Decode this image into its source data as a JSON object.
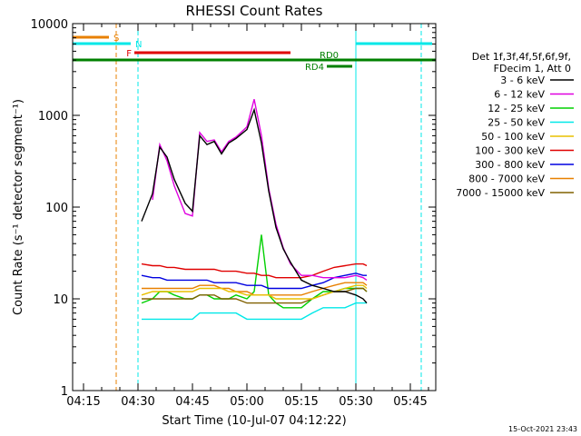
{
  "chart_data": {
    "type": "line",
    "title": "RHESSI Count Rates",
    "xlabel": "Start Time (10-Jul-07 04:12:22)",
    "ylabel": "Count Rate (s⁻¹ detector segment⁻¹)",
    "ylog": true,
    "xlim": [
      "04:12",
      "05:52"
    ],
    "ylim": [
      1,
      10000
    ],
    "x_ticks": [
      "04:15",
      "04:30",
      "04:45",
      "05:00",
      "05:15",
      "05:30",
      "05:45"
    ],
    "y_ticks": [
      "1",
      "10",
      "100",
      "1000",
      "10000"
    ],
    "legend": {
      "header": [
        "Det 1f,3f,4f,5f,6f,9f,",
        "FDecim 1, Att 0"
      ],
      "position": "right",
      "entries": [
        {
          "label": "3 - 6 keV",
          "color": "#000000"
        },
        {
          "label": "6 - 12 keV",
          "color": "#e000e0"
        },
        {
          "label": "12 - 25 keV",
          "color": "#00d000"
        },
        {
          "label": "25 - 50 keV",
          "color": "#00e8e8"
        },
        {
          "label": "50 - 100 keV",
          "color": "#e8c000"
        },
        {
          "label": "100 - 300 keV",
          "color": "#e00000"
        },
        {
          "label": "300 - 800 keV",
          "color": "#0000e0"
        },
        {
          "label": "800 - 7000 keV",
          "color": "#e88000"
        },
        {
          "label": "7000 - 15000 keV",
          "color": "#806000"
        }
      ]
    },
    "x": [
      "04:31",
      "04:34",
      "04:36",
      "04:38",
      "04:40",
      "04:43",
      "04:45",
      "04:47",
      "04:49",
      "04:51",
      "04:53",
      "04:55",
      "04:57",
      "05:00",
      "05:02",
      "05:04",
      "05:06",
      "05:08",
      "05:10",
      "05:12",
      "05:15",
      "05:18",
      "05:21",
      "05:24",
      "05:27",
      "05:30",
      "05:32",
      "05:33"
    ],
    "series": [
      {
        "name": "3 - 6 keV",
        "color": "#000000",
        "values": [
          70,
          140,
          450,
          350,
          200,
          110,
          90,
          600,
          480,
          520,
          380,
          500,
          560,
          700,
          1150,
          500,
          150,
          60,
          35,
          25,
          16,
          14,
          13,
          12,
          12,
          11,
          10,
          9
        ]
      },
      {
        "name": "6 - 12 keV",
        "color": "#e000e0",
        "values": [
          null,
          120,
          480,
          320,
          170,
          85,
          80,
          650,
          520,
          540,
          400,
          520,
          580,
          750,
          1500,
          600,
          160,
          65,
          36,
          24,
          18,
          18,
          17,
          17,
          17,
          18,
          17,
          16
        ]
      },
      {
        "name": "12 - 25 keV",
        "color": "#00d000",
        "values": [
          9,
          10,
          12,
          12,
          11,
          10,
          10,
          11,
          11,
          10,
          10,
          10,
          11,
          10,
          12,
          50,
          11,
          9,
          8,
          8,
          8,
          10,
          12,
          12,
          13,
          13,
          13,
          12
        ]
      },
      {
        "name": "25 - 50 keV",
        "color": "#00e8e8",
        "values": [
          6,
          6,
          6,
          6,
          6,
          6,
          6,
          7,
          7,
          7,
          7,
          7,
          7,
          6,
          6,
          6,
          6,
          6,
          6,
          6,
          6,
          7,
          8,
          8,
          8,
          9,
          9,
          9
        ]
      },
      {
        "name": "50 - 100 keV",
        "color": "#e8c000",
        "values": [
          11,
          12,
          12,
          12,
          12,
          12,
          12,
          13,
          13,
          13,
          13,
          12,
          12,
          11,
          11,
          11,
          11,
          10,
          10,
          10,
          10,
          10,
          11,
          12,
          13,
          14,
          14,
          13
        ]
      },
      {
        "name": "100 - 300 keV",
        "color": "#e00000",
        "values": [
          24,
          23,
          23,
          22,
          22,
          21,
          21,
          21,
          21,
          21,
          20,
          20,
          20,
          19,
          19,
          18,
          18,
          17,
          17,
          17,
          17,
          18,
          20,
          22,
          23,
          24,
          24,
          23
        ]
      },
      {
        "name": "300 - 800 keV",
        "color": "#0000e0",
        "values": [
          18,
          17,
          17,
          16,
          16,
          16,
          16,
          16,
          16,
          15,
          15,
          15,
          15,
          14,
          14,
          14,
          13,
          13,
          13,
          13,
          13,
          14,
          15,
          17,
          18,
          19,
          18,
          18
        ]
      },
      {
        "name": "800 - 7000 keV",
        "color": "#e88000",
        "values": [
          13,
          13,
          13,
          13,
          13,
          13,
          13,
          14,
          14,
          14,
          13,
          13,
          12,
          12,
          11,
          11,
          11,
          11,
          11,
          11,
          11,
          12,
          13,
          14,
          15,
          15,
          15,
          14
        ]
      },
      {
        "name": "7000 - 15000 keV",
        "color": "#806000",
        "values": [
          10,
          10,
          10,
          10,
          10,
          10,
          10,
          11,
          11,
          11,
          10,
          10,
          10,
          9,
          9,
          9,
          9,
          9,
          9,
          9,
          9,
          10,
          11,
          12,
          12,
          13,
          13,
          12
        ]
      }
    ],
    "attenuator_bars": [
      {
        "label": "S",
        "color": "#e88000",
        "start": "04:12",
        "end": "04:22"
      },
      {
        "label": "N",
        "color": "#00e8e8",
        "start": "04:12",
        "end": "04:28"
      },
      {
        "label": "F",
        "color": "#e00000",
        "start": "04:29",
        "end": "05:12"
      },
      {
        "label": "RD0",
        "color": "#008000",
        "start": "04:12",
        "end": "05:52"
      },
      {
        "label": "RD4",
        "color": "#008000",
        "start": "05:22",
        "end": "05:29"
      },
      {
        "label": "",
        "color": "#00e8e8",
        "start": "05:30",
        "end": "05:51"
      }
    ],
    "vertical_markers": [
      {
        "time": "04:12",
        "color": "#00e8e8",
        "style": "solid"
      },
      {
        "time": "04:24",
        "color": "#e88000",
        "style": "dashed"
      },
      {
        "time": "04:30",
        "color": "#00e8e8",
        "style": "dashed"
      },
      {
        "time": "05:30",
        "color": "#00e8e8",
        "style": "solid"
      },
      {
        "time": "05:48",
        "color": "#00e8e8",
        "style": "dashed"
      }
    ]
  },
  "footer": {
    "timestamp": "15-Oct-2021 23:43"
  }
}
